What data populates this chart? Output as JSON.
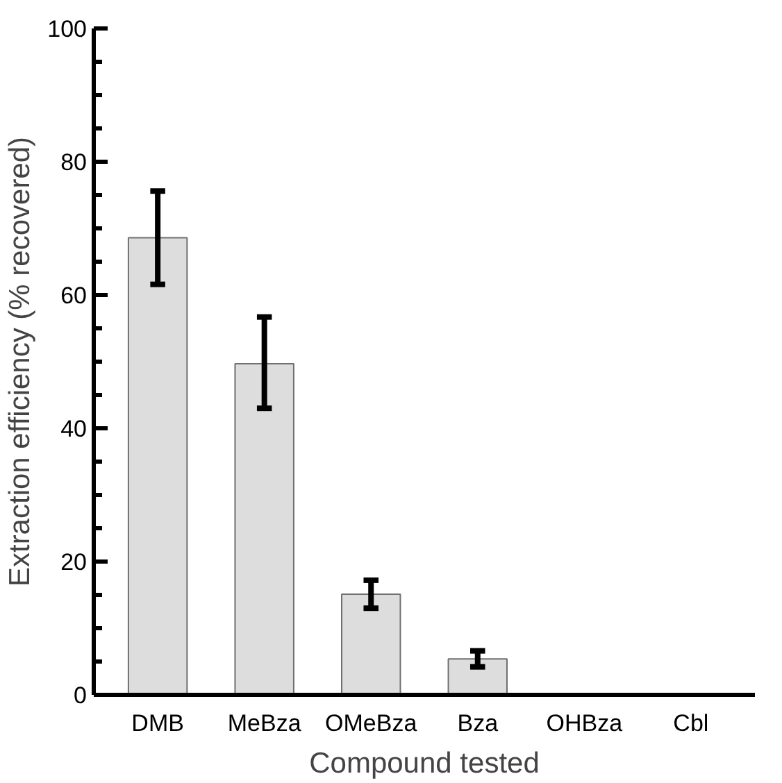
{
  "chart_data": {
    "type": "bar",
    "xlabel": "Compound tested",
    "ylabel": "Extraction efficiency (% recovered)",
    "categories": [
      "DMB",
      "MeBza",
      "OMeBza",
      "Bza",
      "OHBza",
      "Cbl"
    ],
    "values": [
      68.6,
      49.7,
      15.1,
      5.4,
      0.2,
      0.1
    ],
    "errors": [
      [
        61.6,
        75.6
      ],
      [
        43.0,
        56.7
      ],
      [
        13.0,
        17.2
      ],
      [
        4.2,
        6.6
      ],
      null,
      null
    ],
    "color": "#dcdddc",
    "ylim": [
      0,
      100
    ],
    "yticks": [
      0,
      20,
      40,
      60,
      80,
      100
    ],
    "grid": false
  }
}
